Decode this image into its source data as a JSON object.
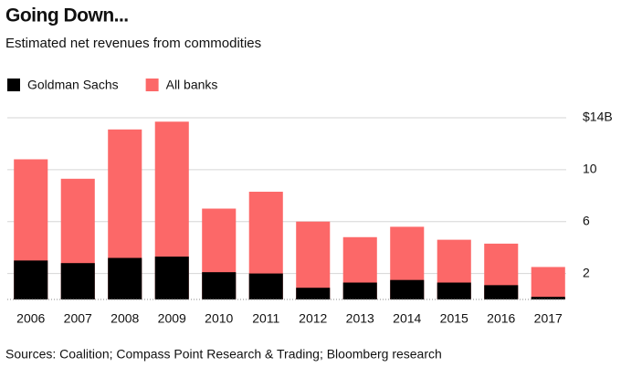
{
  "chart_data": {
    "type": "bar",
    "title": "Going Down...",
    "subtitle": "Estimated net revenues from commodities",
    "source": "Sources: Coalition; Compass Point Research & Trading; Bloomberg research",
    "categories": [
      "2006",
      "2007",
      "2008",
      "2009",
      "2010",
      "2011",
      "2012",
      "2013",
      "2014",
      "2015",
      "2016",
      "2017"
    ],
    "series": [
      {
        "name": "All banks",
        "color": "#fc6868",
        "values": [
          10.8,
          9.3,
          13.1,
          13.7,
          7.0,
          8.3,
          6.0,
          4.8,
          5.6,
          4.6,
          4.3,
          2.5
        ]
      },
      {
        "name": "Goldman Sachs",
        "color": "#000000",
        "values": [
          3.0,
          2.8,
          3.2,
          3.3,
          2.1,
          2.0,
          0.9,
          1.3,
          1.5,
          1.3,
          1.1,
          0.2
        ]
      }
    ],
    "ylim": [
      0,
      14
    ],
    "yticks": [
      2,
      6,
      10,
      {
        "value": 14,
        "label": "$14B"
      }
    ],
    "grid": true
  }
}
